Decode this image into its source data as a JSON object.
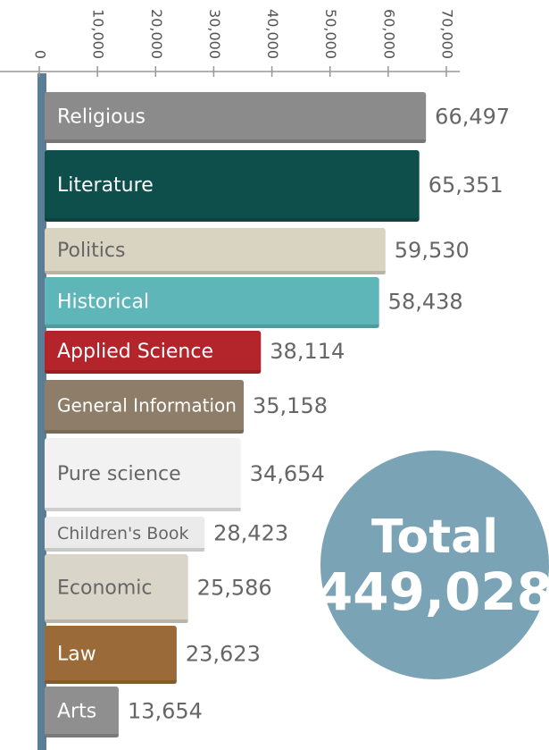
{
  "chart_data": {
    "type": "bar",
    "categories": [
      "Religious",
      "Literature",
      "Politics",
      "Historical",
      "Applied Science",
      "General Information",
      "Pure science",
      "Children's Book",
      "Economic",
      "Law",
      "Arts"
    ],
    "values": [
      66497,
      65351,
      59530,
      58438,
      38114,
      35158,
      34654,
      28423,
      25586,
      23623,
      13654
    ],
    "value_labels": [
      "66,497",
      "65,351",
      "59,530",
      "58,438",
      "38,114",
      "35,158",
      "34,654",
      "28,423",
      "25,586",
      "23,623",
      "13,654"
    ],
    "colors": [
      "#8b8b8b",
      "#0f4f4b",
      "#d9d3c1",
      "#5fb6b9",
      "#b3242b",
      "#8d7d69",
      "#f2f2f2",
      "#ebebeb",
      "#d9d5c9",
      "#9a6a38",
      "#8f8f8f"
    ],
    "xlim": [
      0,
      70000
    ],
    "xticks": [
      0,
      {
        "value": 10000,
        "label": "10,000"
      },
      {
        "value": 20000,
        "label": "20,000"
      },
      {
        "value": 30000,
        "label": "30,000"
      },
      {
        "value": 40000,
        "label": "40,000"
      },
      {
        "value": 50000,
        "label": "50,000"
      },
      {
        "value": 60000,
        "label": "60,000"
      },
      {
        "value": 70000,
        "label": "70,000"
      }
    ],
    "total": {
      "label": "Total",
      "value": 449028,
      "value_label": "449,028"
    }
  }
}
